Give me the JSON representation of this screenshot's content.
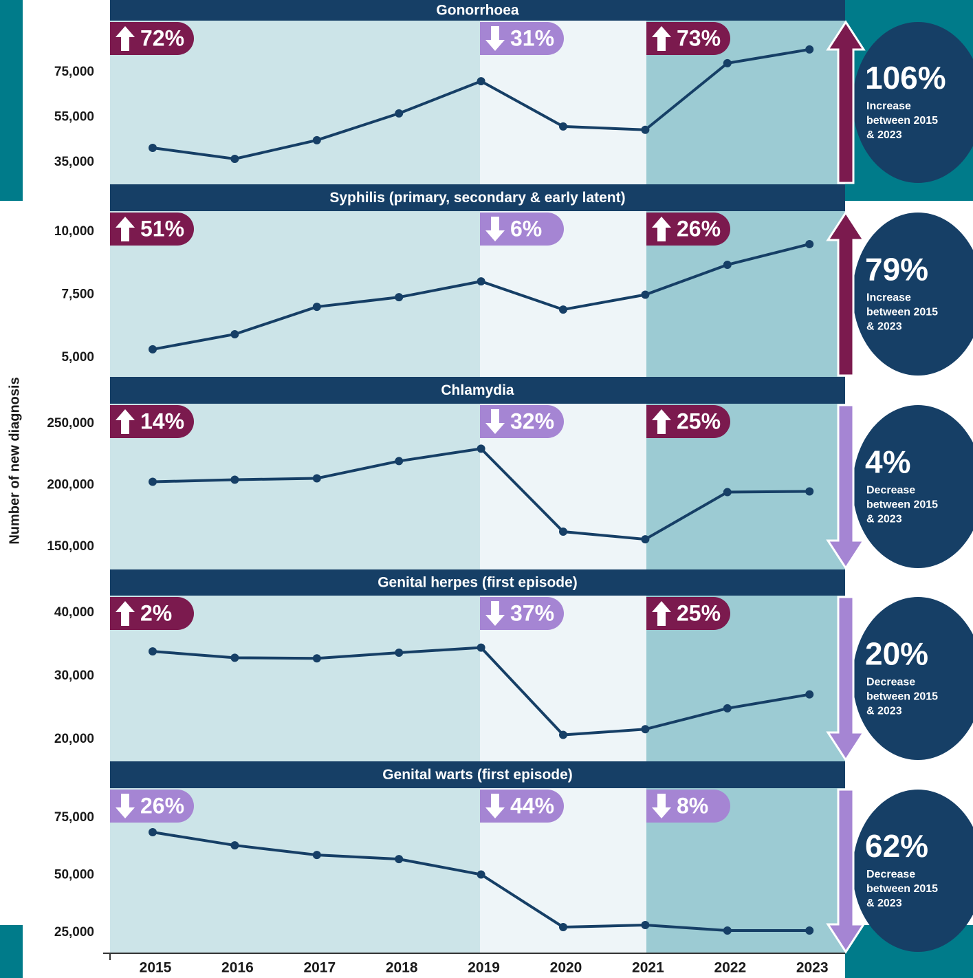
{
  "chart_data": [
    {
      "type": "line",
      "title": "Gonorrhoea",
      "color": "#163f66",
      "values": [
        41400,
        36500,
        44800,
        56700,
        71000,
        50900,
        49400,
        79000,
        85100
      ],
      "ylim": [
        25200,
        97900
      ],
      "yticks": [
        {
          "value": 35000,
          "label": "35,000"
        },
        {
          "value": 55000,
          "label": "55,000"
        },
        {
          "value": 75000,
          "label": "75,000"
        }
      ],
      "period_changes": [
        {
          "label": "72%",
          "direction": "up"
        },
        {
          "label": "31%",
          "direction": "down"
        },
        {
          "label": "73%",
          "direction": "up"
        }
      ],
      "summary": {
        "label": "106%",
        "lines": [
          "Increase",
          "between 2015",
          "& 2023"
        ],
        "direction": "up"
      }
    },
    {
      "type": "line",
      "title": "Syphilis (primary, secondary & early latent)",
      "color": "#163f66",
      "values": [
        5330,
        5930,
        7020,
        7400,
        8030,
        6910,
        7500,
        8690,
        9510
      ],
      "ylim": [
        4235,
        10820
      ],
      "yticks": [
        {
          "value": 5000,
          "label": "5,000"
        },
        {
          "value": 7500,
          "label": "7,500"
        },
        {
          "value": 10000,
          "label": "10,000"
        }
      ],
      "period_changes": [
        {
          "label": "51%",
          "direction": "up"
        },
        {
          "label": "6%",
          "direction": "down"
        },
        {
          "label": "26%",
          "direction": "up"
        }
      ],
      "summary": {
        "label": "79%",
        "lines": [
          "Increase",
          "between 2015",
          "& 2023"
        ],
        "direction": "up"
      }
    },
    {
      "type": "line",
      "title": "Chlamydia",
      "color": "#163f66",
      "ylabel": "Number of new diagnosis",
      "values": [
        202800,
        204500,
        205600,
        219600,
        229700,
        162300,
        156100,
        194400,
        195000
      ],
      "ylim": [
        131600,
        266200
      ],
      "yticks": [
        {
          "value": 150000,
          "label": "150,000"
        },
        {
          "value": 200000,
          "label": "200,000"
        },
        {
          "value": 250000,
          "label": "250,000"
        }
      ],
      "period_changes": [
        {
          "label": "14%",
          "direction": "up"
        },
        {
          "label": "32%",
          "direction": "down"
        },
        {
          "label": "25%",
          "direction": "up"
        }
      ],
      "summary": {
        "label": "4%",
        "lines": [
          "Decrease",
          "between 2015",
          "& 2023"
        ],
        "direction": "down"
      }
    },
    {
      "type": "line",
      "title": "Genital herpes (first episode)",
      "color": "#163f66",
      "values": [
        33900,
        32900,
        32800,
        33700,
        34500,
        20700,
        21600,
        24900,
        27100
      ],
      "ylim": [
        16520,
        42720
      ],
      "yticks": [
        {
          "value": 20000,
          "label": "20,000"
        },
        {
          "value": 30000,
          "label": "30,000"
        },
        {
          "value": 40000,
          "label": "40,000"
        }
      ],
      "period_changes": [
        {
          "label": "2%",
          "direction": "up"
        },
        {
          "label": "37%",
          "direction": "down"
        },
        {
          "label": "25%",
          "direction": "up"
        }
      ],
      "summary": {
        "label": "20%",
        "lines": [
          "Decrease",
          "between 2015",
          "& 2023"
        ],
        "direction": "down"
      }
    },
    {
      "type": "line",
      "title": "Genital warts (first episode)",
      "color": "#163f66",
      "categories": [
        "2015",
        "2016",
        "2017",
        "2018",
        "2019",
        "2020",
        "2021",
        "2022",
        "2023"
      ],
      "values": [
        68700,
        63000,
        58800,
        57000,
        50300,
        27400,
        28300,
        25900,
        25900
      ],
      "ylim": [
        16020,
        87870
      ],
      "yticks": [
        {
          "value": 25000,
          "label": "25,000"
        },
        {
          "value": 50000,
          "label": "50,000"
        },
        {
          "value": 75000,
          "label": "75,000"
        }
      ],
      "period_changes": [
        {
          "label": "26%",
          "direction": "down"
        },
        {
          "label": "44%",
          "direction": "down"
        },
        {
          "label": "8%",
          "direction": "down"
        }
      ],
      "summary": {
        "label": "62%",
        "lines": [
          "Decrease",
          "between 2015",
          "& 2023"
        ],
        "direction": "down"
      }
    }
  ]
}
